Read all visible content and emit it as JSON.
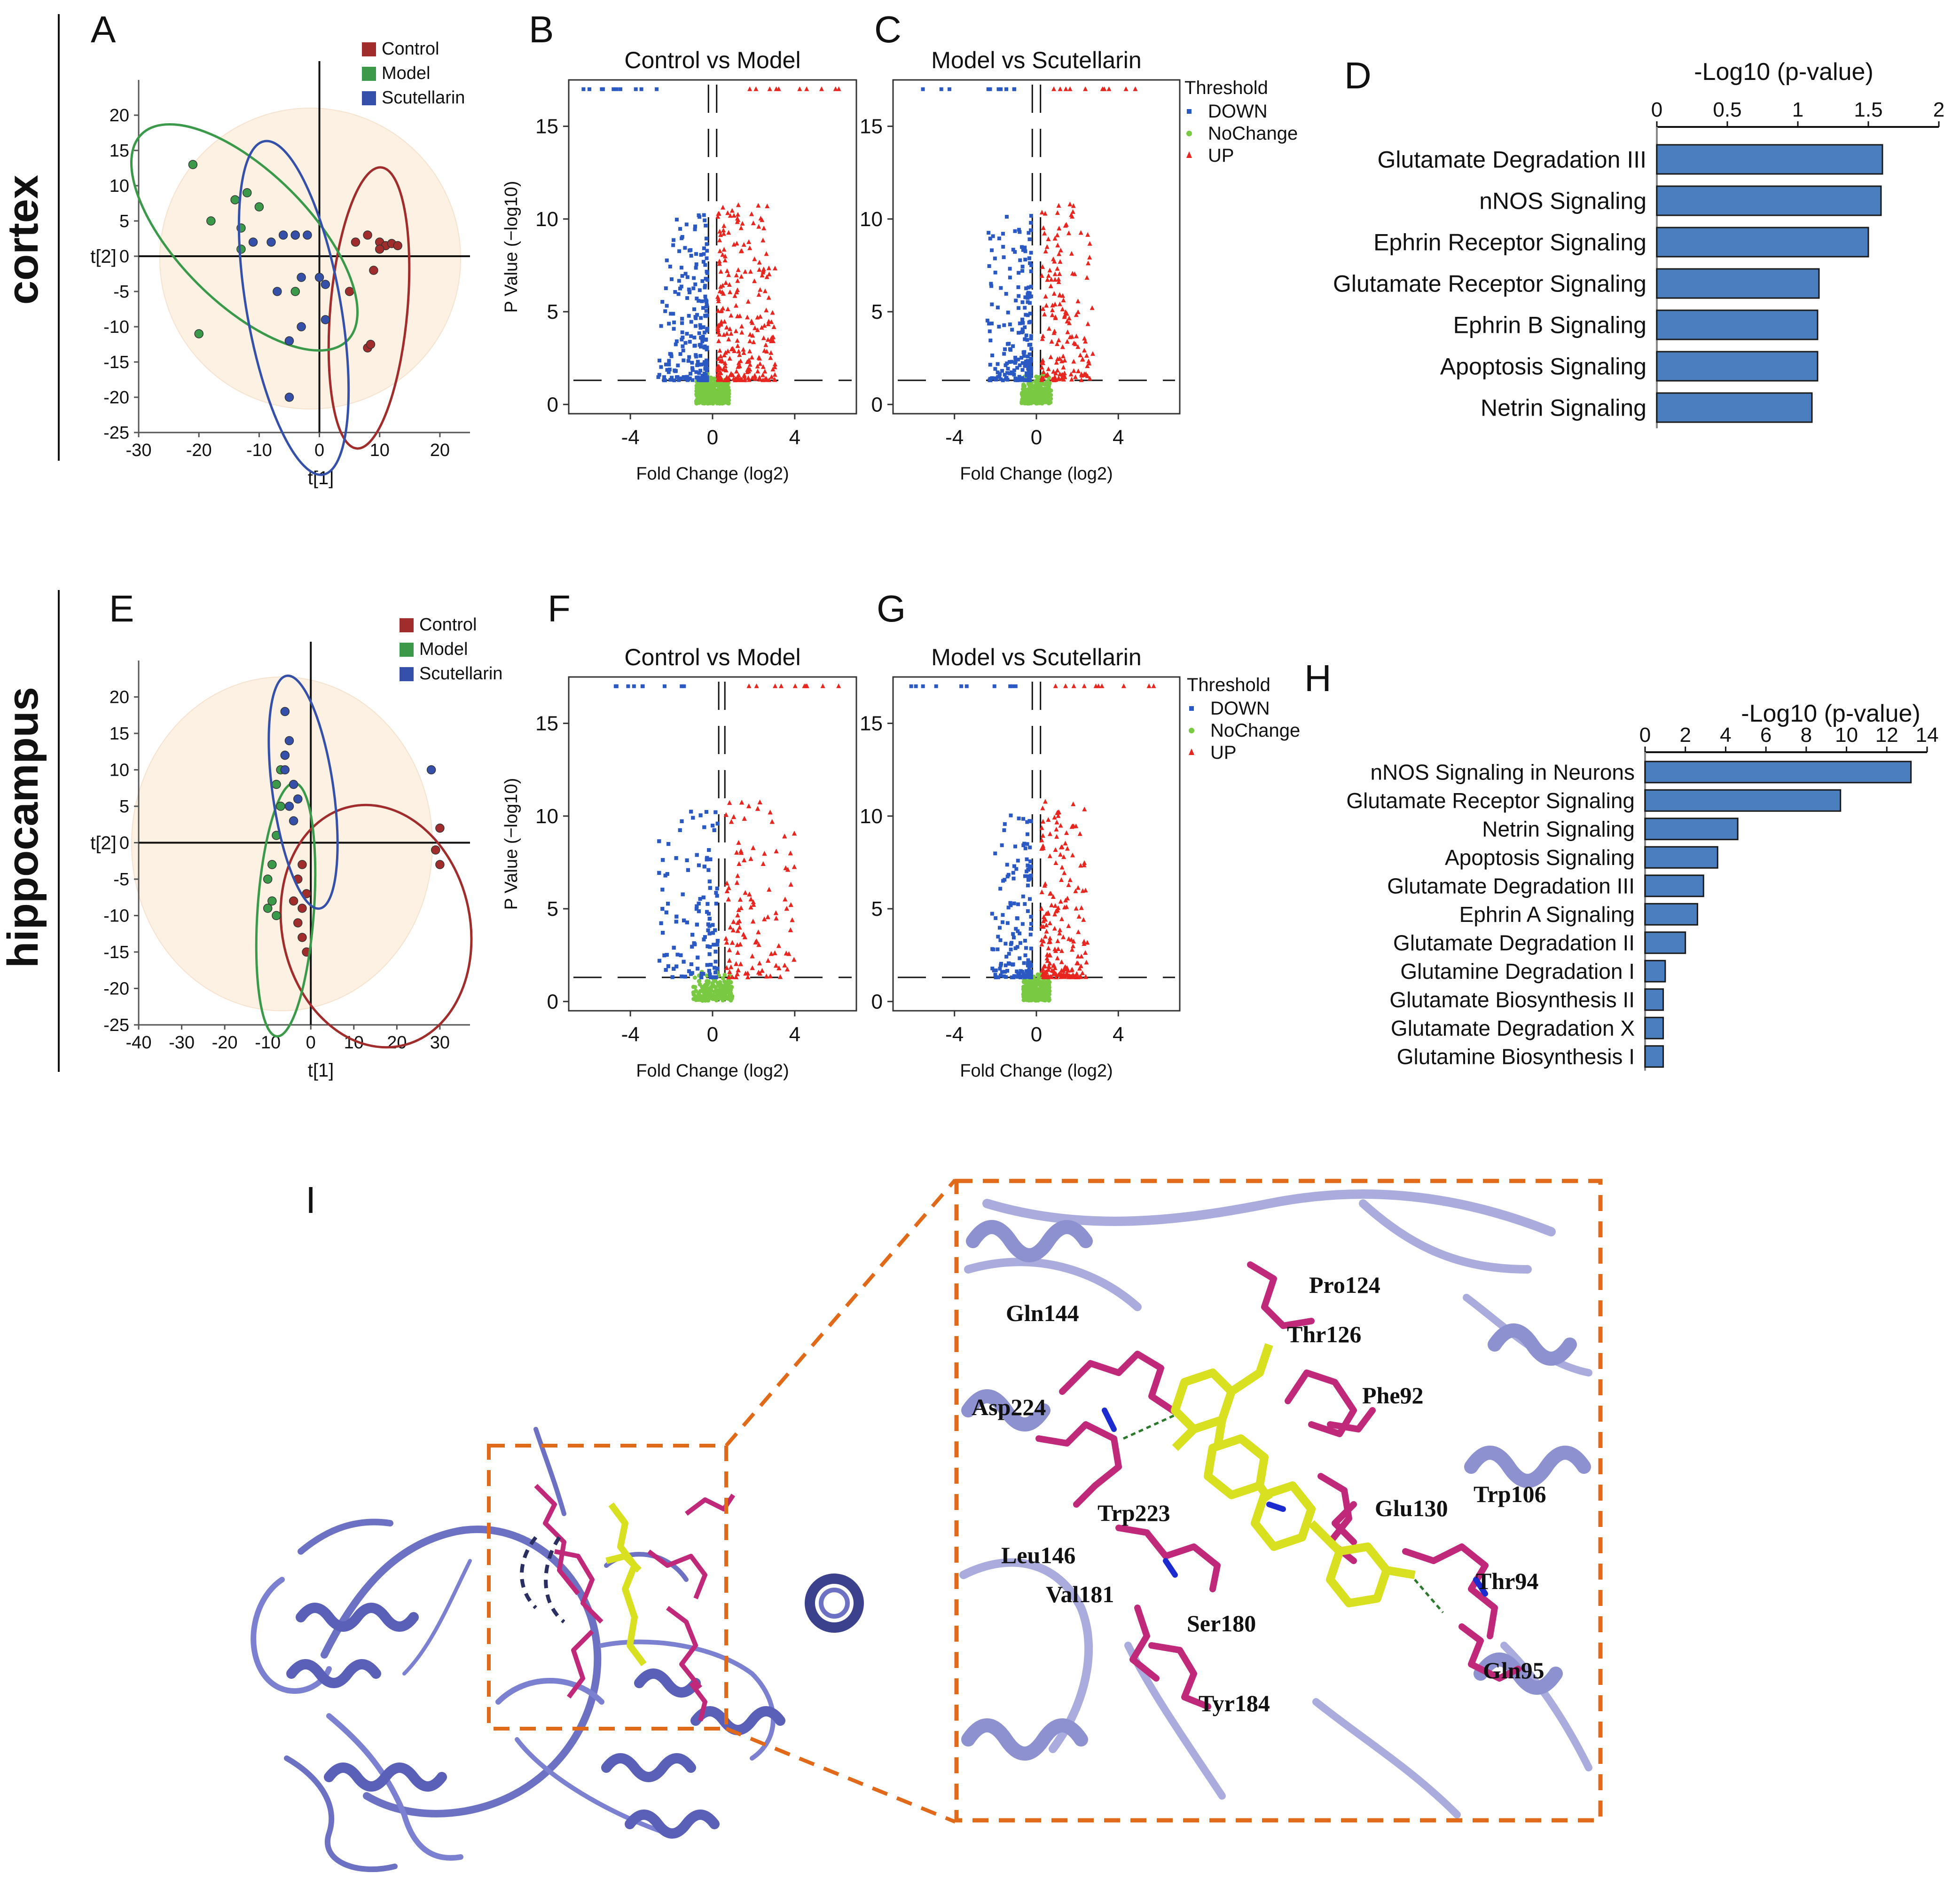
{
  "figure": {
    "rows": {
      "cortex": "cortex",
      "hippocampus": "hippocampus"
    },
    "panels": [
      "A",
      "B",
      "C",
      "D",
      "E",
      "F",
      "G",
      "H",
      "I"
    ]
  },
  "colors": {
    "control": "#a02c2c",
    "model": "#3a9a4a",
    "scutellarin": "#3450a8",
    "down": "#2b59c3",
    "nochange": "#7ac943",
    "up": "#e8261f",
    "bar": "#4a7ebf",
    "bar_edge": "#1a1a1a",
    "ellipse_bg": "#fdf1e4",
    "protein": "#8a8fd6",
    "ligand": "#d8e020",
    "residue": "#c0287a",
    "box": "#e06a1a"
  },
  "chart_data": [
    {
      "id": "A",
      "type": "scatter",
      "title": "",
      "xlabel": "t[1]",
      "ylabel": "t[2]",
      "xlim": [
        -30,
        25
      ],
      "ylim": [
        -25,
        25
      ],
      "xticks": [
        -30,
        -20,
        -10,
        0,
        10,
        20
      ],
      "yticks": [
        20,
        15,
        10,
        5,
        0,
        -5,
        -10,
        -15,
        -20,
        -25
      ],
      "legend": [
        "Control",
        "Model",
        "Scutellarin"
      ],
      "series": [
        {
          "name": "Control",
          "points": [
            [
              8,
              3
            ],
            [
              10,
              2
            ],
            [
              11,
              1.5
            ],
            [
              12,
              1.8
            ],
            [
              13,
              1.5
            ],
            [
              5,
              -5
            ],
            [
              9,
              -2
            ],
            [
              8,
              -13
            ],
            [
              8.5,
              -12.5
            ],
            [
              6,
              2
            ],
            [
              10,
              1
            ]
          ]
        },
        {
          "name": "Model",
          "points": [
            [
              -21,
              13
            ],
            [
              -18,
              5
            ],
            [
              -14,
              8
            ],
            [
              -13,
              1
            ],
            [
              -12,
              9
            ],
            [
              -20,
              -11
            ],
            [
              -4,
              -5
            ],
            [
              -10,
              7
            ],
            [
              -13,
              4
            ]
          ]
        },
        {
          "name": "Scutellarin",
          "points": [
            [
              -11,
              2
            ],
            [
              -8,
              2
            ],
            [
              -6,
              3
            ],
            [
              -4,
              3
            ],
            [
              -3,
              -3
            ],
            [
              0,
              -3
            ],
            [
              -7,
              -5
            ],
            [
              -5,
              -12
            ],
            [
              -3,
              -10
            ],
            [
              1,
              -9
            ],
            [
              1,
              -4
            ],
            [
              -4,
              3
            ],
            [
              -2,
              3
            ],
            [
              -5,
              -20
            ]
          ]
        }
      ]
    },
    {
      "id": "B",
      "type": "scatter",
      "title": "Control vs Model",
      "xlabel": "Fold Change (log2)",
      "ylabel": "P Value (−log10)",
      "xlim": [
        -7,
        7
      ],
      "ylim": [
        -0.5,
        17.5
      ],
      "xticks": [
        -4,
        0,
        4
      ],
      "yticks": [
        0,
        5,
        10,
        15
      ],
      "threshold_p": 1.3,
      "vlines": [
        -0.2,
        0.2
      ],
      "legend_title": "Threshold",
      "legend": [
        "DOWN",
        "NoChange",
        "UP"
      ],
      "density": {
        "down": 220,
        "up": 260,
        "nochange": 420,
        "spread": 1.0
      }
    },
    {
      "id": "C",
      "type": "scatter",
      "title": "Model vs Scutellarin",
      "xlabel": "Fold Change (log2)",
      "ylabel": "",
      "xlim": [
        -7,
        7
      ],
      "ylim": [
        -0.5,
        17.5
      ],
      "xticks": [
        -4,
        0,
        4
      ],
      "yticks": [
        0,
        5,
        10,
        15
      ],
      "threshold_p": 1.3,
      "vlines": [
        -0.2,
        0.2
      ],
      "legend_title": "Threshold",
      "legend": [
        "DOWN",
        "NoChange",
        "UP"
      ],
      "density": {
        "down": 200,
        "up": 160,
        "nochange": 380,
        "spread": 0.9
      }
    },
    {
      "id": "D",
      "type": "bar",
      "orientation": "horizontal",
      "title": "-Log10 (p-value)",
      "xlim": [
        0,
        2
      ],
      "xticks": [
        0,
        0.5,
        1,
        1.5,
        2
      ],
      "categories": [
        "Glutamate Degradation III",
        "nNOS Signaling",
        "Ephrin Receptor Signaling",
        "Glutamate Receptor Signaling",
        "Ephrin B Signaling",
        "Apoptosis Signaling",
        "Netrin Signaling"
      ],
      "values": [
        1.6,
        1.59,
        1.5,
        1.15,
        1.14,
        1.14,
        1.1
      ]
    },
    {
      "id": "E",
      "type": "scatter",
      "title": "",
      "xlabel": "t[1]",
      "ylabel": "t[2]",
      "xlim": [
        -40,
        37
      ],
      "ylim": [
        -25,
        25
      ],
      "xticks": [
        -40,
        -30,
        -20,
        -10,
        0,
        10,
        20,
        30
      ],
      "yticks": [
        20,
        15,
        10,
        5,
        0,
        -5,
        -10,
        -15,
        -20,
        -25
      ],
      "legend": [
        "Control",
        "Model",
        "Scutellarin"
      ],
      "series": [
        {
          "name": "Control",
          "points": [
            [
              -2,
              -3
            ],
            [
              -3,
              -5
            ],
            [
              -1,
              -7
            ],
            [
              -2,
              -9
            ],
            [
              -3,
              -11
            ],
            [
              -2,
              -13
            ],
            [
              -1,
              -15
            ],
            [
              -4,
              -8
            ],
            [
              30,
              2
            ],
            [
              29,
              -1
            ],
            [
              30,
              -3
            ]
          ]
        },
        {
          "name": "Model",
          "points": [
            [
              -9,
              -3
            ],
            [
              -10,
              -5
            ],
            [
              -9,
              -8
            ],
            [
              -10,
              -9
            ],
            [
              -8,
              -10
            ],
            [
              -7,
              5
            ],
            [
              -8,
              8
            ],
            [
              -7,
              10
            ],
            [
              -6,
              12
            ],
            [
              -8,
              1
            ]
          ]
        },
        {
          "name": "Scutellarin",
          "points": [
            [
              -6,
              18
            ],
            [
              -5,
              14
            ],
            [
              -6,
              10
            ],
            [
              -4,
              8
            ],
            [
              -5,
              5
            ],
            [
              -3,
              6
            ],
            [
              -4,
              3
            ],
            [
              -6,
              12
            ],
            [
              28,
              10
            ]
          ]
        }
      ]
    },
    {
      "id": "F",
      "type": "scatter",
      "title": "Control vs Model",
      "xlabel": "Fold Change (log2)",
      "ylabel": "P Value (−log10)",
      "xlim": [
        -7,
        7
      ],
      "ylim": [
        -0.5,
        17.5
      ],
      "xticks": [
        -4,
        0,
        4
      ],
      "yticks": [
        0,
        5,
        10,
        15
      ],
      "threshold_p": 1.3,
      "vlines": [
        0.3,
        0.6
      ],
      "legend_title": "Threshold",
      "legend": [
        "DOWN",
        "NoChange",
        "UP"
      ],
      "density": {
        "down": 320,
        "up": 300,
        "nochange": 600,
        "spread": 1.2
      }
    },
    {
      "id": "G",
      "type": "scatter",
      "title": "Model vs Scutellarin",
      "xlabel": "Fold Change (log2)",
      "ylabel": "",
      "xlim": [
        -7,
        7
      ],
      "ylim": [
        -0.5,
        17.5
      ],
      "xticks": [
        -4,
        0,
        4
      ],
      "yticks": [
        0,
        5,
        10,
        15
      ],
      "threshold_p": 1.3,
      "vlines": [
        -0.2,
        0.2
      ],
      "legend_title": "Threshold",
      "legend": [
        "DOWN",
        "NoChange",
        "UP"
      ],
      "density": {
        "down": 160,
        "up": 200,
        "nochange": 380,
        "spread": 0.8
      }
    },
    {
      "id": "H",
      "type": "bar",
      "orientation": "horizontal",
      "title": "-Log10 (p-value)",
      "xlim": [
        0,
        14
      ],
      "xticks": [
        0,
        2,
        4,
        6,
        8,
        10,
        12,
        14
      ],
      "categories": [
        "nNOS Signaling in Neurons",
        "Glutamate Receptor Signaling",
        "Netrin Signaling",
        "Apoptosis Signaling",
        "Glutamate Degradation III",
        "Ephrin A Signaling",
        "Glutamate Degradation II",
        "Glutamine Degradation I",
        "Glutamate Biosynthesis II",
        "Glutamate Degradation X",
        "Glutamine Biosynthesis I"
      ],
      "values": [
        13.2,
        9.7,
        4.6,
        3.6,
        2.9,
        2.6,
        2.0,
        1.0,
        0.9,
        0.9,
        0.9
      ]
    }
  ],
  "docking": {
    "label": "I",
    "residues": [
      "Pro124",
      "Gln144",
      "Thr126",
      "Phe92",
      "Asp224",
      "Trp106",
      "Glu130",
      "Trp223",
      "Leu146",
      "Thr94",
      "Val181",
      "Ser180",
      "Gln95",
      "Tyr184"
    ]
  }
}
